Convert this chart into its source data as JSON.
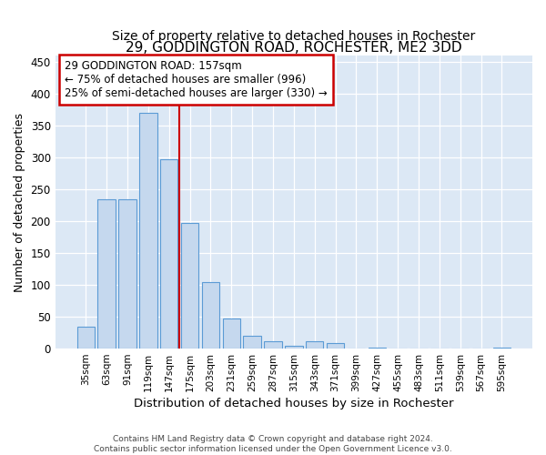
{
  "title": "29, GODDINGTON ROAD, ROCHESTER, ME2 3DD",
  "subtitle": "Size of property relative to detached houses in Rochester",
  "xlabel": "Distribution of detached houses by size in Rochester",
  "ylabel": "Number of detached properties",
  "categories": [
    "35sqm",
    "63sqm",
    "91sqm",
    "119sqm",
    "147sqm",
    "175sqm",
    "203sqm",
    "231sqm",
    "259sqm",
    "287sqm",
    "315sqm",
    "343sqm",
    "371sqm",
    "399sqm",
    "427sqm",
    "455sqm",
    "483sqm",
    "511sqm",
    "539sqm",
    "567sqm",
    "595sqm"
  ],
  "values": [
    35,
    235,
    235,
    370,
    298,
    198,
    105,
    47,
    20,
    12,
    4,
    11,
    8,
    0,
    2,
    0,
    0,
    0,
    0,
    0,
    2
  ],
  "bar_color": "#c5d8ee",
  "bar_edge_color": "#5b9bd5",
  "vline_x": 4.5,
  "vline_color": "#cc0000",
  "annotation_text": "29 GODDINGTON ROAD: 157sqm\n← 75% of detached houses are smaller (996)\n25% of semi-detached houses are larger (330) →",
  "annotation_box_color": "#ffffff",
  "annotation_box_edge": "#cc0000",
  "annotation_fontsize": 8.5,
  "title_fontsize": 11,
  "subtitle_fontsize": 10,
  "xlabel_fontsize": 9.5,
  "ylabel_fontsize": 9,
  "footer1": "Contains HM Land Registry data © Crown copyright and database right 2024.",
  "footer2": "Contains public sector information licensed under the Open Government Licence v3.0.",
  "ylim": [
    0,
    460
  ],
  "background_color": "#dce8f5",
  "plot_background": "#dce8f5"
}
